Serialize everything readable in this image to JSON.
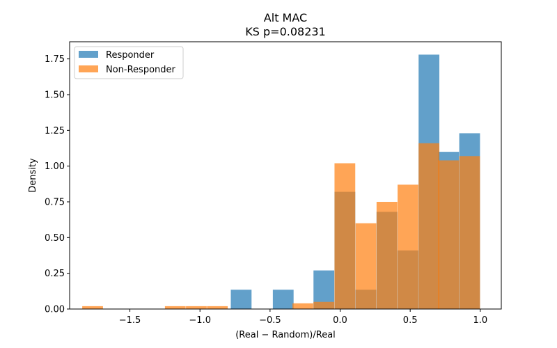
{
  "chart_data": {
    "type": "histogram",
    "title": "Alt MAC",
    "subtitle": "KS p=0.08231",
    "xlabel": "(Real − Random)/Real",
    "ylabel": "Density",
    "xlim": [
      -1.93,
      1.15
    ],
    "ylim": [
      0,
      1.87
    ],
    "xticks": [
      -1.5,
      -1.0,
      -0.5,
      0.0,
      0.5,
      1.0
    ],
    "xtick_labels": [
      "−1.5",
      "−1.0",
      "−0.5",
      "0.0",
      "0.5",
      "1.0"
    ],
    "yticks": [
      0,
      0.25,
      0.5,
      0.75,
      1.0,
      1.25,
      1.5,
      1.75
    ],
    "ytick_labels": [
      "0.00",
      "0.25",
      "0.50",
      "0.75",
      "1.00",
      "1.25",
      "1.50",
      "1.75"
    ],
    "legend_position": "top-left",
    "grid": false,
    "series": [
      {
        "name": "Responder",
        "color": "#1f77b4",
        "opacity": 0.7,
        "bin_width": 0.148,
        "bin_starts": [
          -0.78,
          -0.48,
          -0.19,
          -0.04,
          0.11,
          0.26,
          0.41,
          0.56,
          0.7,
          0.85
        ],
        "values": [
          0.135,
          0.135,
          0.27,
          0.82,
          0.135,
          0.68,
          0.41,
          1.78,
          1.1,
          1.23
        ]
      },
      {
        "name": "Non-Responder",
        "color": "#ff7f0e",
        "opacity": 0.7,
        "bin_width": 0.148,
        "bin_starts": [
          -1.84,
          -1.25,
          -1.1,
          -0.95,
          -0.34,
          -0.19,
          -0.04,
          0.11,
          0.26,
          0.41,
          0.56,
          0.7,
          0.85
        ],
        "values": [
          0.02,
          0.02,
          0.02,
          0.02,
          0.04,
          0.05,
          1.02,
          0.6,
          0.75,
          0.87,
          1.16,
          1.04,
          1.07
        ]
      }
    ]
  }
}
